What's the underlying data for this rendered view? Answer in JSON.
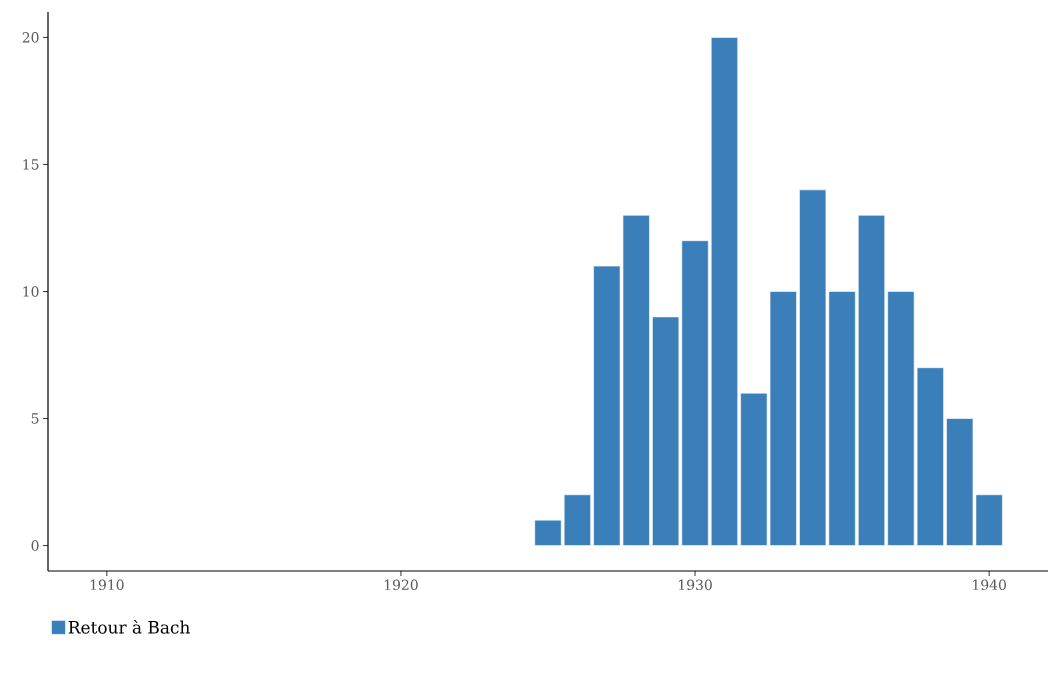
{
  "chart_data": {
    "type": "bar",
    "x": [
      1925,
      1926,
      1927,
      1928,
      1929,
      1930,
      1931,
      1932,
      1933,
      1934,
      1935,
      1936,
      1937,
      1938,
      1939,
      1940
    ],
    "series": [
      {
        "name": "Retour à Bach",
        "color": "#3a7fba",
        "values": [
          1,
          2,
          11,
          13,
          9,
          12,
          20,
          6,
          10,
          14,
          10,
          13,
          10,
          7,
          5,
          2
        ]
      }
    ],
    "xlim": [
      1908,
      1942
    ],
    "xticks": [
      1910,
      1920,
      1930,
      1940
    ],
    "ylim": [
      -1,
      21
    ],
    "yticks": [
      0,
      5,
      10,
      15,
      20
    ],
    "grid": false,
    "legend": "bottom left"
  }
}
